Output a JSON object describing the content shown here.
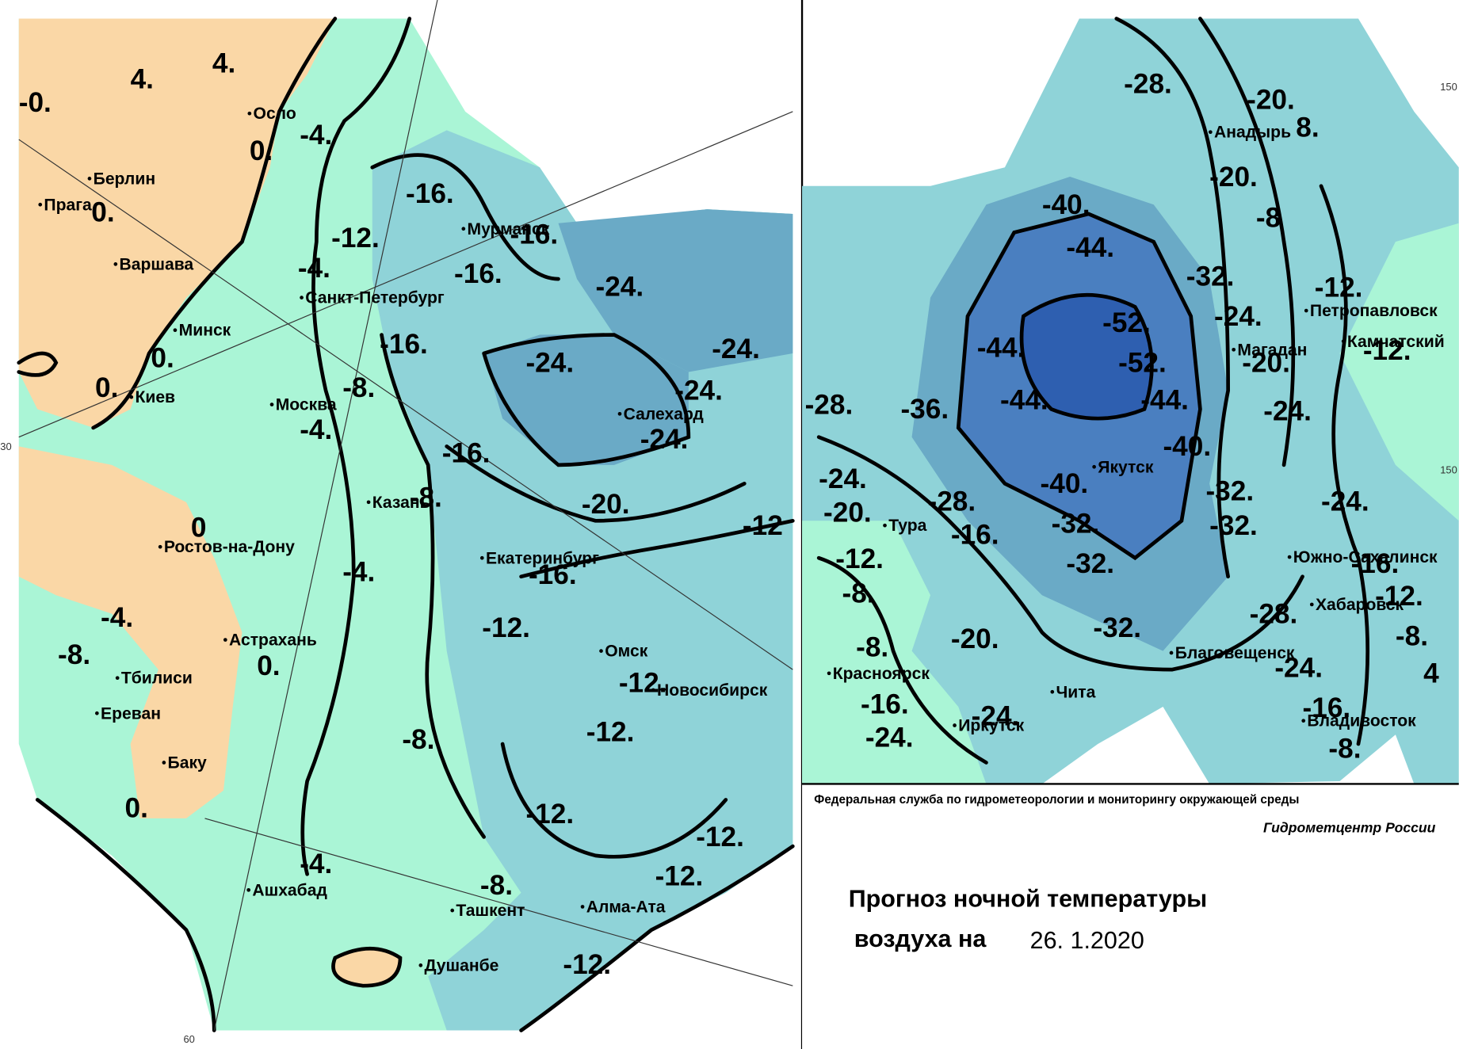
{
  "left_map": {
    "cities": [
      "Осло",
      "Берлин",
      "Прага",
      "Варшава",
      "Санкт-Петербург",
      "Минск",
      "Киев",
      "Москва",
      "Казань",
      "Ростов-на-Дону",
      "Екатеринбург",
      "Мурманск",
      "Салехард",
      "Астрахань",
      "Омск",
      "Тбилиси",
      "Новосибирск",
      "Ереван",
      "Баку",
      "Ашхабад",
      "Ташкент",
      "Алма-Ата",
      "Душанбе"
    ],
    "isotherm_labels": [
      "4.",
      "4.",
      "-0.",
      "-4.",
      "0.",
      "0.",
      "-16.",
      "-16.",
      "-12.",
      "-4.",
      "-16.",
      "-24.",
      "-16.",
      "0.",
      "-24.",
      "-24.",
      "0.",
      "-8.",
      "-24.",
      "-4.",
      "-24.",
      "-16.",
      "-8.",
      "-20.",
      "-12",
      "0",
      "-4.",
      "-16.",
      "-4.",
      "-12.",
      "-8.",
      "0.",
      "-12.",
      "-12.",
      "-8.",
      "-12.",
      "0.",
      "-12.",
      "-4.",
      "-12.",
      "-8.",
      "-12."
    ],
    "graticule_labels": [
      "30",
      "60"
    ]
  },
  "right_map": {
    "cities": [
      "Анадырь",
      "Петропавловск",
      "Камчатский",
      "Магадан",
      "Якутск",
      "Тура",
      "Южно-Сахалинск",
      "Хабаровск",
      "Благовещенск",
      "Красноярск",
      "Чита",
      "Иркутск",
      "Владивосток"
    ],
    "isotherm_labels": [
      "-28.",
      "-20.",
      "8.",
      "-20.",
      "-40.",
      "-8",
      "-44.",
      "-32.",
      "-12.",
      "-24.",
      "-52.",
      "-44.",
      "-52.",
      "-20.",
      "-12.",
      "-28.",
      "-36.",
      "-44.",
      "-44.",
      "-24.",
      "-40.",
      "-24.",
      "-40.",
      "-32.",
      "-24.",
      "-20.",
      "-28.",
      "-32.",
      "-32.",
      "-16.",
      "-12.",
      "-32.",
      "-16.",
      "-8.",
      "-12.",
      "-28.",
      "-32.",
      "-8.",
      "-20.",
      "-8.",
      "4",
      "-24.",
      "-16.",
      "-24.",
      "-16.",
      "-24.",
      "-8."
    ],
    "graticule_labels": [
      "150",
      "150"
    ]
  },
  "footer": {
    "agency": "Федеральная служба по гидрометеорологии и мониторингу окружающей среды",
    "center": "Гидрометцентр России",
    "title_line1": "Прогноз ночной температуры",
    "title_line2": "воздуха на",
    "date": "26. 1.2020"
  }
}
